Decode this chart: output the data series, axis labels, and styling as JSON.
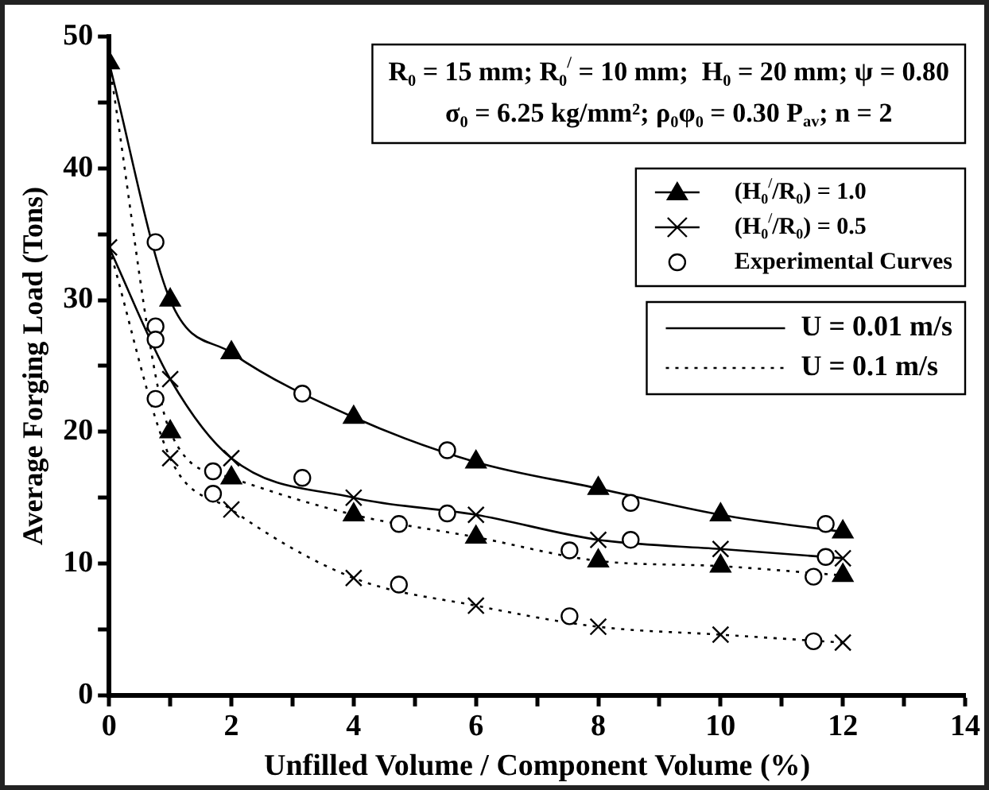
{
  "chart_data": {
    "type": "scatter",
    "xlabel": "Unfilled Volume / Component Volume (%)",
    "ylabel": "Average Forging Load (Tons)",
    "xlim": [
      0,
      14
    ],
    "xticks": [
      0,
      {
        "value": 1,
        "label": null
      },
      2,
      {
        "value": 3,
        "label": null
      },
      4,
      {
        "value": 5,
        "label": null
      },
      6,
      {
        "value": 7,
        "label": null
      },
      8,
      {
        "value": 9,
        "label": null
      },
      10,
      {
        "value": 11,
        "label": null
      },
      12,
      {
        "value": 13,
        "label": null
      },
      14
    ],
    "ylim": [
      0,
      50
    ],
    "yticks": [
      0,
      {
        "value": 5,
        "label": null
      },
      10,
      {
        "value": 15,
        "label": null
      },
      20,
      {
        "value": 25,
        "label": null
      },
      30,
      {
        "value": 35,
        "label": null
      },
      40,
      {
        "value": 45,
        "label": null
      },
      50
    ],
    "grid": false,
    "legend": "top right",
    "annotations": [
      "R₀ = 15 mm; R₀$^{/}$ = 10 mm;  H₀ = 20 mm; ψ = 0.80",
      "σ₀ = 6.25 kg/mm²; ρ₀φ₀ = 0.30 P$_{av}$; n = 2"
    ],
    "series": [
      {
        "name": "U = 0.01 m/s",
        "type": "line",
        "line_style": "solid",
        "marker": "none",
        "color": "#000000",
        "x": [
          0,
          1,
          2,
          4,
          6,
          8,
          10,
          12
        ],
        "values": [
          48,
          30,
          26,
          21.1,
          17.7,
          15.7,
          13.7,
          12.4
        ]
      },
      {
        "type": "line",
        "line_style": "solid",
        "marker": "none",
        "color": "#000000",
        "x": [
          0,
          1,
          2,
          4,
          6,
          8,
          10,
          12
        ],
        "values": [
          34,
          24,
          18,
          15,
          13.7,
          11.8,
          11.1,
          10.4
        ]
      },
      {
        "name": "U = 0.1 m/s",
        "type": "line",
        "line_style": "dotted",
        "marker": "none",
        "color": "#000000",
        "x": [
          0,
          1,
          2,
          4,
          6,
          8,
          10,
          12
        ],
        "values": [
          48,
          20,
          16.5,
          13.7,
          12,
          10.2,
          9.8,
          9.1
        ]
      },
      {
        "type": "line",
        "line_style": "dotted",
        "marker": "none",
        "color": "#000000",
        "x": [
          0,
          1,
          2,
          4,
          6,
          8,
          10,
          12
        ],
        "values": [
          34,
          18,
          14.1,
          8.9,
          6.8,
          5.2,
          4.6,
          4
        ]
      },
      {
        "name": "(H₀$^{/}$/R₀) = 1.0",
        "type": "scatter",
        "marker": "triangle",
        "color": "#000000",
        "x": [
          0,
          1,
          2,
          4,
          6,
          8,
          10,
          12,
          1,
          2,
          4,
          6,
          8,
          10,
          12
        ],
        "values": [
          48,
          30,
          26,
          21.1,
          17.7,
          15.7,
          13.7,
          12.4,
          20,
          16.5,
          13.7,
          12,
          10.2,
          9.8,
          9.1
        ]
      },
      {
        "name": "(H₀$^{/}$/R₀) = 0.5",
        "type": "scatter",
        "marker": "cross",
        "color": "#000000",
        "x": [
          0,
          1,
          2,
          4,
          6,
          8,
          10,
          12,
          1,
          2,
          4,
          6,
          8,
          10,
          12
        ],
        "values": [
          34,
          24,
          18,
          15,
          13.7,
          11.8,
          11.1,
          10.4,
          18,
          14.1,
          8.9,
          6.8,
          5.2,
          4.6,
          4
        ]
      },
      {
        "name": "Experimental Curves",
        "type": "scatter",
        "marker": "circle",
        "color": "#000000",
        "x": [
          0.76,
          0.76,
          0.76,
          0.76,
          1.7,
          1.7,
          3.16,
          3.16,
          4.74,
          4.74,
          5.53,
          5.53,
          7.53,
          7.53,
          8.53,
          8.53,
          11.72,
          11.72,
          11.52,
          11.52
        ],
        "values": [
          34.4,
          28,
          27,
          22.5,
          17,
          15.3,
          22.9,
          16.5,
          13,
          8.4,
          18.6,
          13.8,
          11,
          6,
          14.6,
          11.8,
          13,
          10.5,
          9,
          4.1
        ]
      }
    ]
  }
}
